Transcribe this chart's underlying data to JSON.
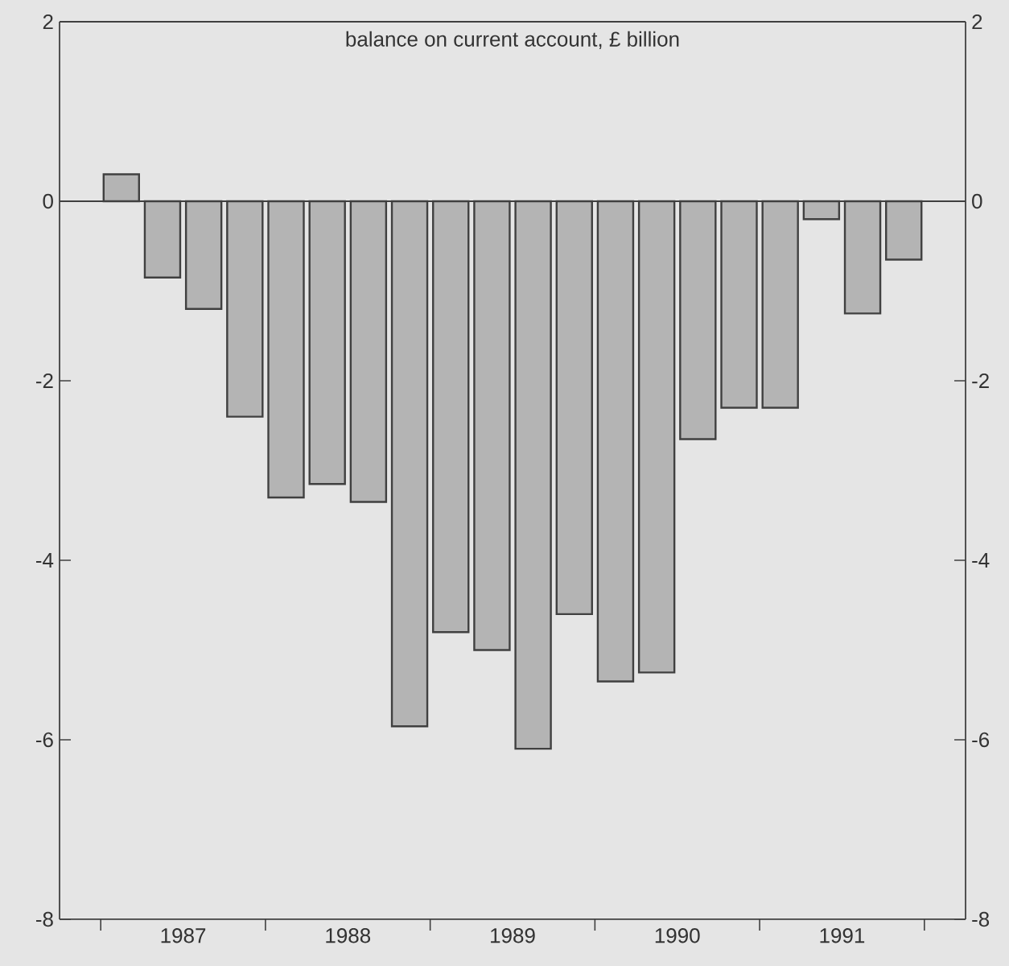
{
  "chart_data": {
    "type": "bar",
    "title": "balance on current account, £ billion",
    "x": [
      1987.125,
      1987.375,
      1987.625,
      1987.875,
      1988.125,
      1988.375,
      1988.625,
      1988.875,
      1989.125,
      1989.375,
      1989.625,
      1989.875,
      1990.125,
      1990.375,
      1990.625,
      1990.875,
      1991.125,
      1991.375,
      1991.625,
      1991.875
    ],
    "values": [
      0.3,
      -0.85,
      -1.2,
      -2.4,
      -3.3,
      -3.15,
      -3.35,
      -5.85,
      -4.8,
      -5.0,
      -6.1,
      -4.6,
      -5.35,
      -5.25,
      -2.65,
      -2.3,
      -2.3,
      -0.2,
      -1.25,
      -0.65
    ],
    "color": "#b4b4b4",
    "xlim": [
      1986.75,
      1992.25
    ],
    "xticks": [
      {
        "value": 1987,
        "label": null
      },
      {
        "value": 1988,
        "label": null
      },
      {
        "value": 1989,
        "label": null
      },
      {
        "value": 1990,
        "label": null
      },
      {
        "value": 1991,
        "label": null
      },
      {
        "value": 1992,
        "label": null
      },
      {
        "value": 1987.5,
        "label": "1987"
      },
      {
        "value": 1988.5,
        "label": "1988"
      },
      {
        "value": 1989.5,
        "label": "1989"
      },
      {
        "value": 1990.5,
        "label": "1990"
      },
      {
        "value": 1991.5,
        "label": "1991"
      }
    ],
    "ylim": [
      -8,
      2
    ],
    "yticks": [
      -8,
      -6,
      -4,
      -2,
      0,
      2
    ],
    "y2lim": [
      -8,
      2
    ],
    "y2ticks": [
      -8,
      -6,
      -4,
      -2,
      0,
      2
    ],
    "ref_lines": [
      {
        "axis": "y",
        "value": 0
      }
    ]
  }
}
